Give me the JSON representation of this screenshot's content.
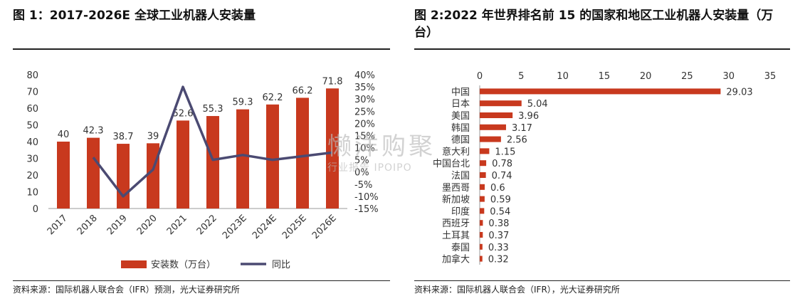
{
  "left": {
    "title": "图 1：2017-2026E 全球工业机器人安装量",
    "source": "资料来源：国际机器人联合会（IFR）预测，光大证券研究所"
  },
  "right": {
    "title": "图 2:2022 年世界排名前 15 的国家和地区工业机器人安装量（万台）",
    "source": "资料来源：国际机器人联合会（IFR），光大证券研究所"
  },
  "watermark": {
    "main": "懒洋购聚",
    "sub": "行业报告 IPOIPO"
  },
  "colors": {
    "bar": "#c8391e",
    "line": "#4b4a72",
    "axis": "#666666",
    "text": "#333333"
  },
  "chart_data": [
    {
      "type": "bar",
      "title": "",
      "categories": [
        "2017",
        "2018",
        "2019",
        "2020",
        "2021",
        "2022",
        "2023E",
        "2024E",
        "2025E",
        "2026E"
      ],
      "series": [
        {
          "name": "安装数（万台）",
          "type": "bar",
          "axis": "left",
          "values": [
            40,
            42.3,
            38.7,
            39,
            52.6,
            55.3,
            59.3,
            62.2,
            66.2,
            71.8
          ]
        },
        {
          "name": "同比",
          "type": "line",
          "axis": "right",
          "values": [
            null,
            6,
            -10,
            1,
            35,
            5,
            7,
            5,
            6.5,
            8
          ]
        }
      ],
      "left_axis": {
        "min": 0,
        "max": 80,
        "step": 10,
        "ticks": [
          "0",
          "10",
          "20",
          "30",
          "40",
          "50",
          "60",
          "70",
          "80"
        ]
      },
      "right_axis": {
        "min": -15,
        "max": 40,
        "step": 5,
        "ticks": [
          "-15%",
          "-10%",
          "-5%",
          "0%",
          "5%",
          "10%",
          "15%",
          "20%",
          "25%",
          "30%",
          "35%",
          "40%"
        ]
      },
      "legend_position": "bottom"
    },
    {
      "type": "bar",
      "orientation": "horizontal",
      "title": "",
      "categories": [
        "中国",
        "日本",
        "美国",
        "韩国",
        "德国",
        "意大利",
        "中国台北",
        "法国",
        "墨西哥",
        "新加坡",
        "印度",
        "西班牙",
        "土耳其",
        "泰国",
        "加拿大"
      ],
      "values": [
        29.03,
        5.04,
        3.96,
        3.17,
        2.56,
        1.15,
        0.78,
        0.74,
        0.6,
        0.59,
        0.54,
        0.38,
        0.37,
        0.33,
        0.32
      ],
      "labels": [
        "29.03",
        "5.04",
        "3.96",
        "3.17",
        "2.56",
        "1.15",
        "0.78",
        "0.74",
        "0.6",
        "0.59",
        "0.54",
        "0.38",
        "0.37",
        "0.33",
        "0.32"
      ],
      "x_axis": {
        "min": 0,
        "max": 35,
        "step": 5,
        "ticks": [
          "0",
          "5",
          "10",
          "15",
          "20",
          "25",
          "30",
          "35"
        ],
        "position": "top"
      }
    }
  ]
}
